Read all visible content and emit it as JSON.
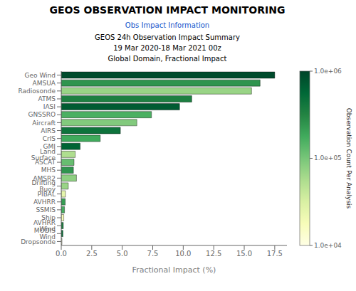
{
  "chart_data": {
    "type": "bar",
    "orientation": "horizontal",
    "title": "GEOS OBSERVATION IMPACT MONITORING",
    "annotations": [
      "Obs Impact Information"
    ],
    "subtitle": "GEOS 24h Observation Impact Summary\n19 Mar 2020-18 Mar 2021 00z\nGlobal Domain, Fractional Impact",
    "xlabel": "Fractional Impact (%)",
    "categories": [
      "Geo Wind",
      "AMSUA",
      "Radiosonde",
      "ATMS",
      "IASI",
      "GNSSRO",
      "Aircraft",
      "AIRS",
      "CrIS",
      "GMI",
      "Land Surface",
      "ASCAT",
      "MHS",
      "AMSR2",
      "Drifting Buoy",
      "PIBAL",
      "AVHRR",
      "SSMIS",
      "Ship",
      "AVHRR Wind",
      "MODIS Wind",
      "Dropsonde"
    ],
    "values": [
      17.5,
      16.3,
      15.6,
      10.7,
      9.7,
      7.4,
      6.2,
      4.85,
      3.2,
      1.55,
      1.15,
      1.05,
      1.0,
      1.25,
      0.58,
      0.35,
      0.33,
      0.27,
      0.21,
      0.17,
      0.14,
      0.06
    ],
    "obs_counts": [
      900000,
      250000,
      70000,
      350000,
      700000,
      160000,
      90000,
      450000,
      180000,
      600000,
      55000,
      120000,
      250000,
      80000,
      70000,
      25000,
      220000,
      170000,
      18000,
      350000,
      450000,
      11000
    ],
    "xlim": [
      0,
      18.5
    ],
    "xticks": [
      {
        "value": 0.0,
        "label": "0.0"
      },
      2.5,
      {
        "value": 5.0,
        "label": "5.0"
      },
      7.5,
      {
        "value": 10.0,
        "label": "10.0"
      },
      12.5,
      {
        "value": 15.0,
        "label": "15.0"
      },
      17.5
    ],
    "grid": false,
    "colorbar": {
      "label": "Observation Count Per Analysis",
      "log": true,
      "range": [
        10000,
        1000000
      ],
      "ticks": [
        {
          "value": 10000,
          "label": "1.0e+04"
        },
        {
          "value": 100000,
          "label": "1.0e+05"
        },
        {
          "value": 1000000,
          "label": "1.0e+06"
        }
      ],
      "colors": [
        "#ffffe5",
        "#f7fcb9",
        "#d9f0a3",
        "#addd8e",
        "#78c679",
        "#41ab5d",
        "#238443",
        "#006837",
        "#004529"
      ]
    }
  }
}
